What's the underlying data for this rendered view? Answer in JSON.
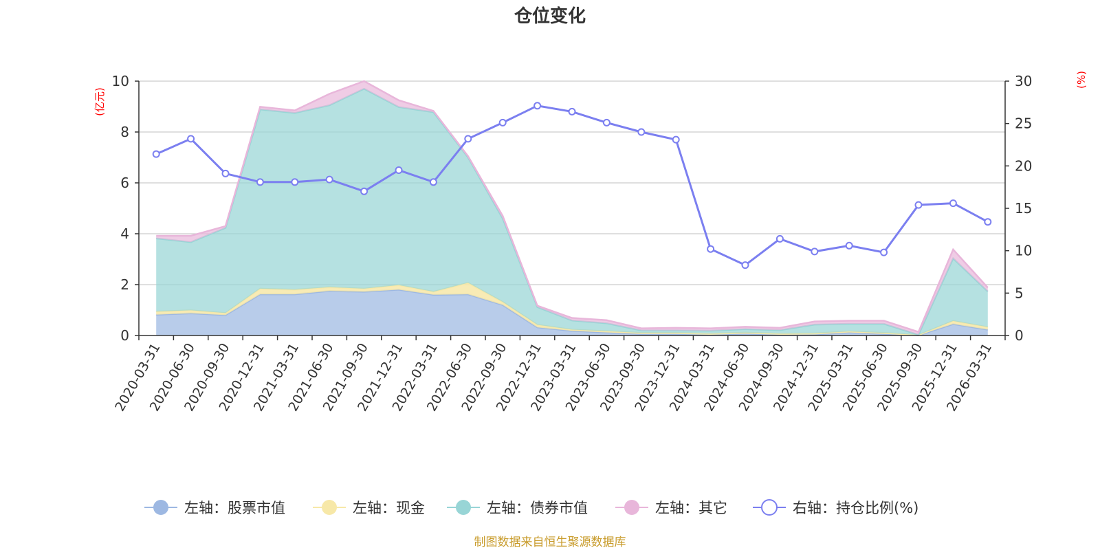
{
  "colors": {
    "stock": "#9db8e2",
    "cash": "#f7e8a8",
    "bond": "#98d5d6",
    "other": "#e8b6da",
    "ratio": "#7b7ff0"
  },
  "chart_data": {
    "type": "area",
    "title": "仓位变化",
    "ylabel_left": "(亿元)",
    "ylabel_right": "(%)",
    "ylim_left": [
      0,
      10
    ],
    "ylim_right": [
      0,
      30
    ],
    "yticks_left": [
      0,
      2,
      4,
      6,
      8,
      10
    ],
    "yticks_right": [
      0,
      5,
      10,
      15,
      20,
      25,
      30
    ],
    "categories": [
      "2020-03-31",
      "2020-06-30",
      "2020-09-30",
      "2020-12-31",
      "2021-03-31",
      "2021-06-30",
      "2021-09-30",
      "2021-12-31",
      "2022-03-31",
      "2022-06-30",
      "2022-09-30",
      "2022-12-31",
      "2023-03-31",
      "2023-06-30",
      "2023-09-30",
      "2023-12-31",
      "2024-03-31",
      "2024-06-30",
      "2024-09-30",
      "2024-12-31",
      "2025-03-31",
      "2025-06-30",
      "2025-09-30",
      "2025-12-31",
      "2026-03-31"
    ],
    "series": [
      {
        "name": "左轴：股票市值",
        "axis": "left",
        "stacked": true,
        "values": [
          0.82,
          0.87,
          0.8,
          1.62,
          1.62,
          1.75,
          1.72,
          1.8,
          1.6,
          1.62,
          1.2,
          0.32,
          0.18,
          0.12,
          0.06,
          0.06,
          0.03,
          0.07,
          0.03,
          0.04,
          0.12,
          0.06,
          0.01,
          0.45,
          0.23
        ]
      },
      {
        "name": "左轴：现金",
        "axis": "left",
        "stacked": true,
        "values": [
          0.12,
          0.12,
          0.08,
          0.22,
          0.18,
          0.15,
          0.12,
          0.18,
          0.12,
          0.45,
          0.12,
          0.1,
          0.05,
          0.05,
          0.04,
          0.04,
          0.04,
          0.04,
          0.04,
          0.04,
          0.04,
          0.04,
          0.01,
          0.12,
          0.1
        ]
      },
      {
        "name": "左轴：债券市值",
        "axis": "left",
        "stacked": true,
        "values": [
          2.88,
          2.68,
          3.35,
          7.05,
          6.95,
          7.15,
          7.86,
          7.0,
          7.06,
          4.93,
          3.28,
          0.7,
          0.36,
          0.31,
          0.1,
          0.1,
          0.12,
          0.14,
          0.14,
          0.35,
          0.3,
          0.36,
          0.01,
          2.46,
          1.4
        ]
      },
      {
        "name": "左轴：其它",
        "axis": "left",
        "stacked": true,
        "values": [
          0.1,
          0.25,
          0.07,
          0.1,
          0.1,
          0.45,
          0.3,
          0.27,
          0.05,
          0.05,
          0.1,
          0.05,
          0.1,
          0.12,
          0.08,
          0.1,
          0.09,
          0.09,
          0.09,
          0.12,
          0.12,
          0.12,
          0.11,
          0.35,
          0.15
        ]
      },
      {
        "name": "右轴：持仓比例(%)",
        "axis": "right",
        "type": "line",
        "values": [
          21.4,
          23.2,
          19.1,
          18.1,
          18.1,
          18.4,
          17.0,
          19.5,
          18.1,
          23.2,
          25.1,
          27.1,
          26.4,
          25.1,
          24.0,
          23.1,
          10.2,
          8.3,
          11.4,
          9.9,
          10.6,
          9.8,
          15.4,
          15.6,
          13.4
        ]
      }
    ],
    "legend_position": "bottom-center"
  },
  "footer": {
    "source": "制图数据来自恒生聚源数据库"
  }
}
